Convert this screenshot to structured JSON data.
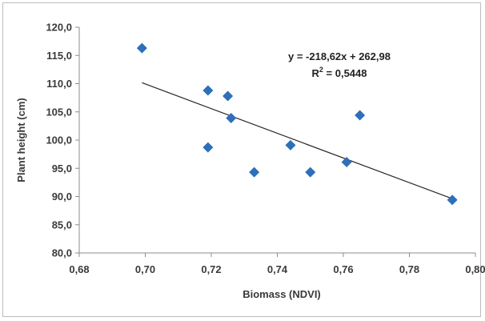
{
  "chart_data": {
    "type": "scatter",
    "title": "",
    "xlabel": "Biomass (NDVI)",
    "ylabel": "Plant height (cm)",
    "xlim": [
      0.68,
      0.8
    ],
    "ylim": [
      80,
      120
    ],
    "x_tick_labels": [
      "0,68",
      "0,70",
      "0,72",
      "0,74",
      "0,76",
      "0,78",
      "0,80"
    ],
    "y_tick_labels": [
      "80,0",
      "85,0",
      "90,0",
      "95,0",
      "100,0",
      "105,0",
      "110,0",
      "115,0",
      "120,0"
    ],
    "x_ticks": [
      0.68,
      0.7,
      0.72,
      0.74,
      0.76,
      0.78,
      0.8
    ],
    "y_ticks": [
      80,
      85,
      90,
      95,
      100,
      105,
      110,
      115,
      120
    ],
    "grid": false,
    "legend": "none",
    "marker_color": "#2e6fba",
    "trendline_color": "#262626",
    "points": [
      {
        "x": 0.699,
        "y": 116.3
      },
      {
        "x": 0.719,
        "y": 108.8
      },
      {
        "x": 0.719,
        "y": 98.7
      },
      {
        "x": 0.725,
        "y": 107.8
      },
      {
        "x": 0.726,
        "y": 103.9
      },
      {
        "x": 0.733,
        "y": 94.3
      },
      {
        "x": 0.744,
        "y": 99.1
      },
      {
        "x": 0.75,
        "y": 94.3
      },
      {
        "x": 0.761,
        "y": 96.1
      },
      {
        "x": 0.765,
        "y": 104.4
      },
      {
        "x": 0.793,
        "y": 89.4
      }
    ],
    "trendline": {
      "slope": -218.62,
      "intercept": 262.98,
      "x_range": [
        0.699,
        0.793
      ],
      "equation_label": "y = -218,62x + 262,98",
      "r2_prefix": "R",
      "r2_sup": "2",
      "r2_suffix": " = 0,5448"
    }
  }
}
